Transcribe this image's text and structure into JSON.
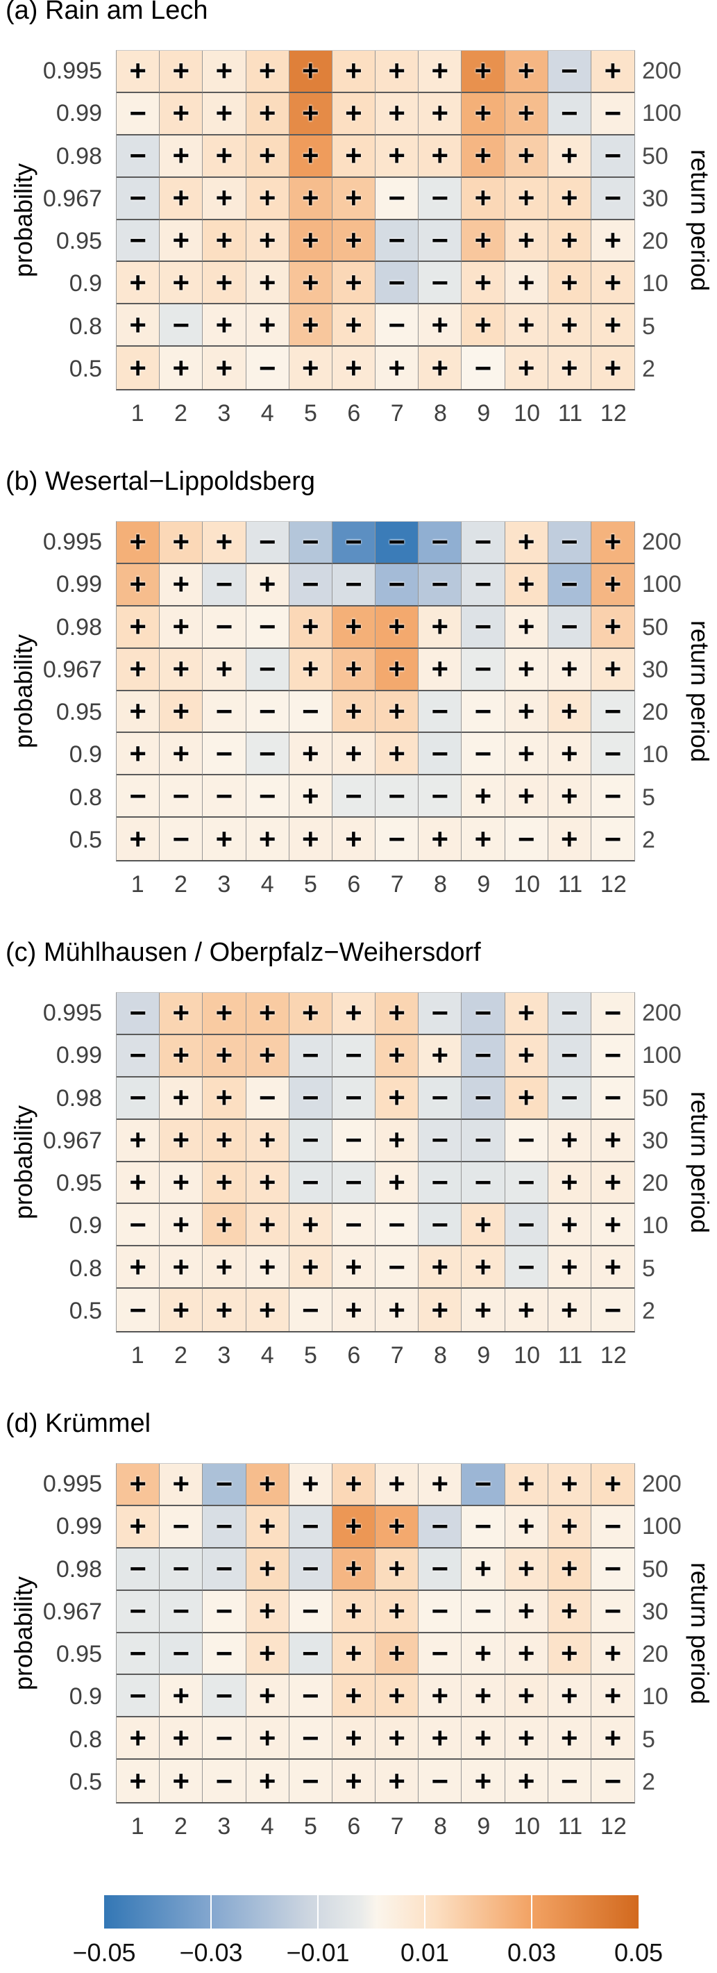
{
  "chart_data": {
    "type": "heatmap",
    "ylabel": "probability",
    "right_ylabel": "return period",
    "probability_ticks": [
      "0.995",
      "0.99",
      "0.98",
      "0.967",
      "0.95",
      "0.9",
      "0.8",
      "0.5"
    ],
    "return_period_ticks": [
      "200",
      "100",
      "50",
      "30",
      "20",
      "10",
      "5",
      "2"
    ],
    "month_ticks": [
      "1",
      "2",
      "3",
      "4",
      "5",
      "6",
      "7",
      "8",
      "9",
      "10",
      "11",
      "12"
    ],
    "value_range": [
      -0.05,
      0.05
    ],
    "panels": [
      {
        "title": "(a) Rain am Lech",
        "signs": [
          [
            "+",
            "+",
            "+",
            "+",
            "+",
            "+",
            "+",
            "+",
            "+",
            "+",
            "-",
            "+"
          ],
          [
            "-",
            "+",
            "+",
            "+",
            "+",
            "+",
            "+",
            "+",
            "+",
            "+",
            "-",
            "-"
          ],
          [
            "-",
            "+",
            "+",
            "+",
            "+",
            "+",
            "+",
            "+",
            "+",
            "+",
            "+",
            "-"
          ],
          [
            "-",
            "+",
            "+",
            "+",
            "+",
            "+",
            "-",
            "-",
            "+",
            "+",
            "+",
            "-"
          ],
          [
            "-",
            "+",
            "+",
            "+",
            "+",
            "+",
            "-",
            "-",
            "+",
            "+",
            "+",
            "+"
          ],
          [
            "+",
            "+",
            "+",
            "+",
            "+",
            "+",
            "-",
            "-",
            "+",
            "+",
            "+",
            "+"
          ],
          [
            "+",
            "-",
            "+",
            "+",
            "+",
            "+",
            "-",
            "+",
            "+",
            "+",
            "+",
            "+"
          ],
          [
            "+",
            "+",
            "+",
            "-",
            "+",
            "+",
            "+",
            "+",
            "-",
            "+",
            "+",
            "+"
          ]
        ],
        "values": [
          [
            0.008,
            0.01,
            0.006,
            0.012,
            0.042,
            0.012,
            0.01,
            0.007,
            0.036,
            0.024,
            -0.01,
            0.01
          ],
          [
            0.003,
            0.01,
            0.006,
            0.013,
            0.038,
            0.012,
            0.008,
            0.008,
            0.026,
            0.022,
            -0.005,
            0.004
          ],
          [
            -0.006,
            0.005,
            0.01,
            0.013,
            0.032,
            0.012,
            0.009,
            0.01,
            0.024,
            0.017,
            0.007,
            -0.006
          ],
          [
            -0.006,
            0.01,
            0.006,
            0.012,
            0.022,
            0.018,
            0.002,
            -0.003,
            0.014,
            0.012,
            0.012,
            -0.005
          ],
          [
            -0.005,
            0.005,
            0.012,
            0.01,
            0.024,
            0.022,
            -0.009,
            -0.005,
            0.019,
            0.01,
            0.012,
            0.004
          ],
          [
            0.008,
            0.008,
            0.01,
            0.006,
            0.02,
            0.014,
            -0.012,
            -0.003,
            0.01,
            0.005,
            0.012,
            0.01
          ],
          [
            0.005,
            -0.003,
            0.004,
            0.004,
            0.019,
            0.011,
            0.002,
            0.004,
            0.012,
            0.008,
            0.009,
            0.009
          ],
          [
            0.009,
            0.003,
            0.005,
            0.002,
            0.007,
            0.007,
            0.003,
            0.008,
            0.001,
            0.008,
            0.008,
            0.009
          ]
        ]
      },
      {
        "title": "(b) Wesertal−Lippoldsberg",
        "signs": [
          [
            "+",
            "+",
            "+",
            "-",
            "-",
            "-",
            "-",
            "-",
            "-",
            "+",
            "-",
            "+"
          ],
          [
            "+",
            "+",
            "-",
            "+",
            "-",
            "-",
            "-",
            "-",
            "-",
            "+",
            "-",
            "+"
          ],
          [
            "+",
            "+",
            "-",
            "-",
            "+",
            "+",
            "+",
            "+",
            "-",
            "+",
            "-",
            "+"
          ],
          [
            "+",
            "+",
            "+",
            "-",
            "+",
            "+",
            "+",
            "+",
            "-",
            "+",
            "+",
            "+"
          ],
          [
            "+",
            "+",
            "-",
            "-",
            "-",
            "+",
            "+",
            "-",
            "-",
            "+",
            "+",
            "-"
          ],
          [
            "+",
            "+",
            "-",
            "-",
            "+",
            "+",
            "+",
            "-",
            "-",
            "+",
            "+",
            "-"
          ],
          [
            "-",
            "-",
            "-",
            "-",
            "+",
            "-",
            "-",
            "-",
            "+",
            "+",
            "+",
            "-"
          ],
          [
            "+",
            "-",
            "+",
            "+",
            "+",
            "+",
            "-",
            "+",
            "+",
            "-",
            "+",
            "-"
          ]
        ],
        "values": [
          [
            0.026,
            0.014,
            0.01,
            -0.005,
            -0.018,
            -0.04,
            -0.048,
            -0.027,
            -0.006,
            0.01,
            -0.015,
            0.025
          ],
          [
            0.022,
            0.004,
            -0.005,
            0.004,
            -0.01,
            -0.008,
            -0.022,
            -0.017,
            -0.006,
            0.011,
            -0.021,
            0.024
          ],
          [
            0.012,
            0.004,
            0.003,
            0.002,
            0.014,
            0.026,
            0.028,
            0.006,
            -0.006,
            0.004,
            -0.006,
            0.016
          ],
          [
            0.01,
            0.008,
            0.005,
            -0.003,
            0.012,
            0.02,
            0.028,
            0.004,
            -0.002,
            0.003,
            0.004,
            0.008
          ],
          [
            0.005,
            0.01,
            0.003,
            0.002,
            0.002,
            0.014,
            0.014,
            -0.003,
            0.002,
            0.004,
            0.008,
            -0.002
          ],
          [
            0.004,
            0.004,
            0.002,
            -0.002,
            0.004,
            0.005,
            0.01,
            -0.004,
            0.002,
            0.003,
            0.004,
            -0.002
          ],
          [
            0.003,
            0.003,
            0.003,
            0.002,
            0.003,
            -0.002,
            -0.002,
            -0.002,
            0.003,
            0.004,
            0.004,
            0.002
          ],
          [
            0.004,
            0.003,
            0.003,
            0.003,
            0.004,
            0.004,
            0.002,
            0.004,
            0.003,
            0.002,
            0.004,
            0.002
          ]
        ]
      },
      {
        "title": "(c) Mühlhausen / Oberpfalz−Weihersdorf",
        "signs": [
          [
            "-",
            "+",
            "+",
            "+",
            "+",
            "+",
            "+",
            "-",
            "-",
            "+",
            "-",
            "-"
          ],
          [
            "-",
            "+",
            "+",
            "+",
            "-",
            "-",
            "+",
            "+",
            "-",
            "+",
            "-",
            "-"
          ],
          [
            "-",
            "+",
            "+",
            "-",
            "-",
            "-",
            "+",
            "-",
            "-",
            "+",
            "-",
            "-"
          ],
          [
            "+",
            "+",
            "+",
            "+",
            "-",
            "-",
            "+",
            "-",
            "-",
            "-",
            "+",
            "+"
          ],
          [
            "+",
            "+",
            "+",
            "+",
            "-",
            "-",
            "+",
            "-",
            "-",
            "-",
            "+",
            "+"
          ],
          [
            "-",
            "+",
            "+",
            "+",
            "+",
            "-",
            "-",
            "-",
            "+",
            "-",
            "+",
            "+"
          ],
          [
            "+",
            "+",
            "+",
            "+",
            "+",
            "+",
            "-",
            "+",
            "+",
            "-",
            "+",
            "+"
          ],
          [
            "-",
            "+",
            "+",
            "+",
            "-",
            "+",
            "+",
            "+",
            "+",
            "+",
            "+",
            "-"
          ]
        ],
        "values": [
          [
            -0.01,
            0.015,
            0.018,
            0.018,
            0.015,
            0.01,
            0.015,
            -0.005,
            -0.013,
            0.01,
            -0.006,
            0.003
          ],
          [
            -0.007,
            0.015,
            0.017,
            0.017,
            -0.005,
            -0.003,
            0.015,
            0.006,
            -0.013,
            0.01,
            -0.006,
            0.002
          ],
          [
            -0.004,
            0.005,
            0.012,
            0.003,
            -0.008,
            -0.003,
            0.012,
            -0.004,
            -0.012,
            0.012,
            -0.004,
            0.002
          ],
          [
            0.004,
            0.01,
            0.012,
            0.01,
            -0.004,
            0.002,
            0.005,
            -0.005,
            -0.006,
            0.002,
            0.004,
            0.004
          ],
          [
            0.004,
            0.004,
            0.012,
            0.01,
            -0.004,
            -0.003,
            0.004,
            -0.004,
            -0.004,
            -0.003,
            0.005,
            0.005
          ],
          [
            0.003,
            0.004,
            0.015,
            0.01,
            0.008,
            0.003,
            0.002,
            -0.004,
            0.01,
            -0.005,
            0.004,
            0.003
          ],
          [
            0.004,
            0.004,
            0.005,
            0.004,
            0.008,
            0.004,
            0.003,
            0.008,
            0.008,
            -0.003,
            0.004,
            0.004
          ],
          [
            0.003,
            0.008,
            0.008,
            0.008,
            0.003,
            0.004,
            0.004,
            0.008,
            0.004,
            0.004,
            0.004,
            0.003
          ]
        ]
      },
      {
        "title": "(d) Krümmel",
        "signs": [
          [
            "+",
            "+",
            "-",
            "+",
            "+",
            "+",
            "+",
            "+",
            "-",
            "+",
            "+",
            "+"
          ],
          [
            "+",
            "-",
            "-",
            "+",
            "-",
            "+",
            "+",
            "-",
            "-",
            "+",
            "+",
            "-"
          ],
          [
            "-",
            "-",
            "-",
            "+",
            "-",
            "+",
            "+",
            "-",
            "+",
            "+",
            "+",
            "-"
          ],
          [
            "-",
            "-",
            "-",
            "+",
            "-",
            "+",
            "+",
            "-",
            "-",
            "+",
            "+",
            "-"
          ],
          [
            "-",
            "-",
            "-",
            "+",
            "-",
            "+",
            "+",
            "-",
            "+",
            "+",
            "+",
            "+"
          ],
          [
            "-",
            "+",
            "-",
            "+",
            "-",
            "+",
            "+",
            "+",
            "+",
            "+",
            "+",
            "+"
          ],
          [
            "+",
            "+",
            "-",
            "+",
            "-",
            "+",
            "+",
            "+",
            "+",
            "+",
            "+",
            "+"
          ],
          [
            "+",
            "+",
            "-",
            "+",
            "-",
            "+",
            "+",
            "-",
            "+",
            "+",
            "-",
            "-"
          ]
        ],
        "values": [
          [
            0.02,
            0.005,
            -0.02,
            0.022,
            0.004,
            0.014,
            0.005,
            0.004,
            -0.024,
            0.01,
            0.01,
            0.012
          ],
          [
            0.01,
            0.003,
            -0.008,
            0.012,
            -0.006,
            0.034,
            0.028,
            -0.01,
            0.002,
            0.004,
            0.01,
            0.003
          ],
          [
            -0.004,
            -0.004,
            -0.006,
            0.013,
            -0.007,
            0.024,
            0.013,
            -0.004,
            0.003,
            0.008,
            0.012,
            0.002
          ],
          [
            -0.003,
            -0.003,
            0.002,
            0.01,
            0.002,
            0.012,
            0.012,
            0.002,
            0.002,
            0.004,
            0.01,
            0.003
          ],
          [
            -0.003,
            -0.004,
            0.002,
            0.01,
            -0.004,
            0.012,
            0.017,
            0.003,
            0.003,
            0.004,
            0.01,
            0.004
          ],
          [
            -0.003,
            0.003,
            -0.003,
            0.004,
            0.003,
            0.012,
            0.012,
            0.004,
            0.004,
            0.005,
            0.004,
            0.004
          ],
          [
            0.004,
            0.004,
            0.003,
            0.004,
            0.003,
            0.005,
            0.005,
            0.004,
            0.004,
            0.004,
            0.004,
            0.004
          ],
          [
            0.003,
            0.003,
            0.003,
            0.003,
            0.003,
            0.004,
            0.004,
            0.003,
            0.003,
            0.003,
            0.003,
            0.003
          ]
        ]
      }
    ],
    "colorbar": {
      "tick_labels": [
        "−0.05",
        "−0.03",
        "−0.01",
        "0.01",
        "0.03",
        "0.05"
      ],
      "tick_values": [
        -0.05,
        -0.03,
        -0.01,
        0.01,
        0.03,
        0.05
      ],
      "inner_tick_values": [
        -0.03,
        -0.01,
        0.01,
        0.03
      ],
      "gradient_stops": [
        {
          "value": -0.05,
          "color": "#3377b5"
        },
        {
          "value": -0.03,
          "color": "#84a7cf"
        },
        {
          "value": -0.012,
          "color": "#ccd5e0"
        },
        {
          "value": -0.002,
          "color": "#e9ebea"
        },
        {
          "value": 0.001,
          "color": "#fbf5ec"
        },
        {
          "value": 0.012,
          "color": "#fcdfc2"
        },
        {
          "value": 0.03,
          "color": "#f2a263"
        },
        {
          "value": 0.05,
          "color": "#d2691e"
        }
      ]
    }
  }
}
